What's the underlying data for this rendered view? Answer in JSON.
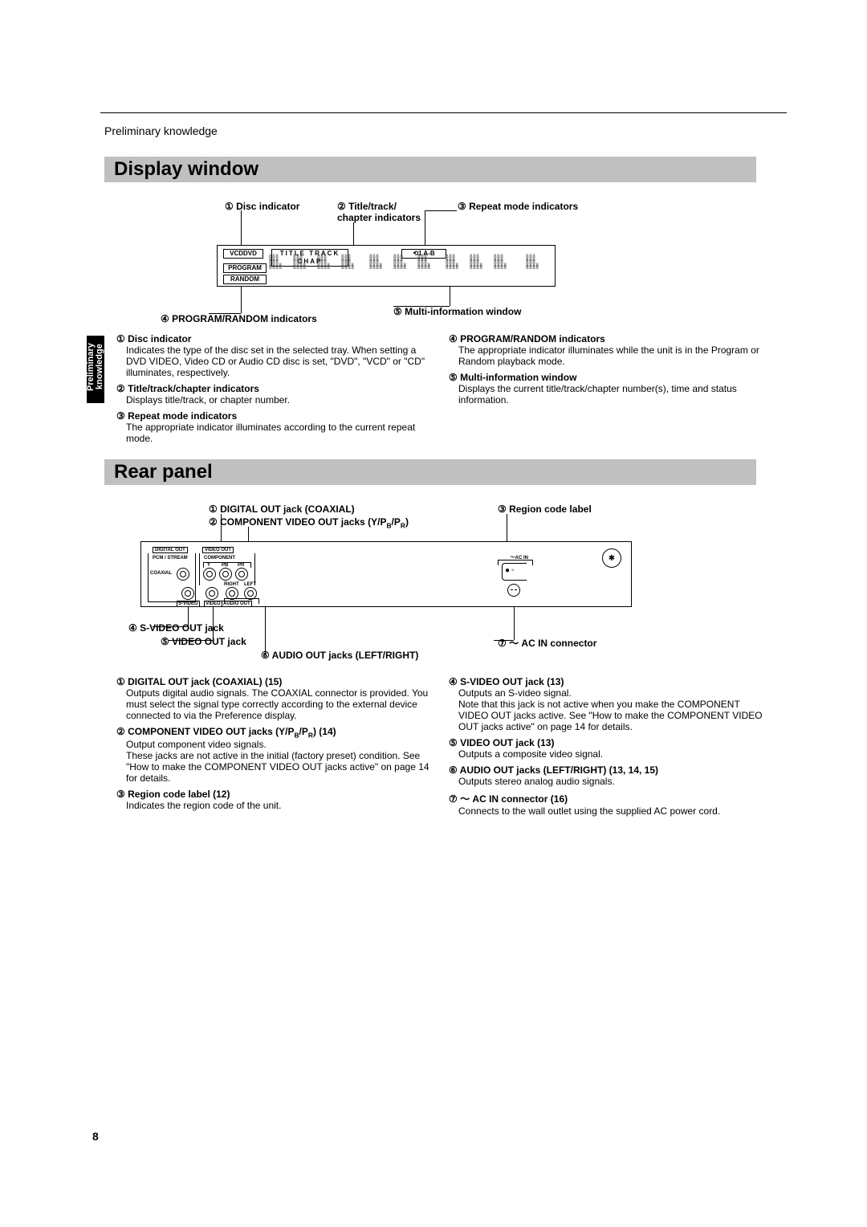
{
  "header": {
    "section": "Preliminary knowledge",
    "sidebar": "Preliminary\nknowledge"
  },
  "page_number": "8",
  "display_window": {
    "title": "Display window",
    "callouts": {
      "c1": "① Disc indicator",
      "c2": "② Title/track/\nchapter indicators",
      "c3": "③ Repeat mode indicators",
      "c4": "④ PROGRAM/RANDOM indicators",
      "c5": "⑤ Multi-information window"
    },
    "labels": {
      "vcd_dvd": "VCDDVD",
      "title": "TITLE",
      "track": "TRACK",
      "chap": "CHAP",
      "repeat": "⟲1    A-B",
      "program": "PROGRAM",
      "random": "RANDOM"
    },
    "descriptions_left": [
      {
        "t": "① Disc indicator",
        "b": "Indicates the type of the disc set in the selected tray. When setting a DVD VIDEO, Video CD or Audio CD disc is set, \"DVD\", \"VCD\" or \"CD\" illuminates, respectively."
      },
      {
        "t": "② Title/track/chapter indicators",
        "b": "Displays title/track, or chapter number."
      },
      {
        "t": "③ Repeat mode indicators",
        "b": "The appropriate indicator illuminates according to the current repeat mode."
      }
    ],
    "descriptions_right": [
      {
        "t": "④ PROGRAM/RANDOM indicators",
        "b": "The appropriate indicator illuminates while the unit is in the Program or Random playback mode."
      },
      {
        "t": "⑤ Multi-information window",
        "b": "Displays the current title/track/chapter number(s), time and status information."
      }
    ]
  },
  "rear_panel": {
    "title": "Rear panel",
    "callouts": {
      "c1": "① DIGITAL OUT jack (COAXIAL)",
      "c2_html": "② COMPONENT VIDEO OUT jacks (Y/P<sub>B</sub>/P<sub>R</sub>)",
      "c3": "③ Region code label",
      "c4": "④ S-VIDEO OUT jack",
      "c5": "⑤ VIDEO OUT jack",
      "c6": "⑥ AUDIO OUT jacks (LEFT/RIGHT)",
      "c7": "⑦ 〜 AC IN connector"
    },
    "jack_labels": {
      "digital_out": "DIGITAL OUT",
      "pcm_stream": "PCM / STREAM",
      "coaxial": "COAXIAL",
      "video_out": "VIDEO OUT",
      "component": "COMPONENT",
      "y": "Y",
      "pb": "PB",
      "pr": "PR",
      "svideo": "S-VIDEO",
      "video": "VIDEO",
      "right": "RIGHT",
      "left": "LEFT",
      "audio_out": "AUDIO OUT",
      "ac_in": "〜AC IN"
    },
    "descriptions_left": [
      {
        "t": "① DIGITAL OUT jack (COAXIAL) (15)",
        "b": "Outputs digital audio signals. The COAXIAL connector is provided. You must select the signal type correctly according to the external device connected to via the Preference display."
      },
      {
        "t_html": "② COMPONENT VIDEO OUT jacks (Y/P<sub>B</sub>/P<sub>R</sub>) (14)",
        "b": "Output component video signals.\nThese jacks are not active in the initial (factory preset) condition. See \"How to make the COMPONENT VIDEO OUT jacks active\" on page 14 for details."
      },
      {
        "t": "③ Region code label (12)",
        "b": "Indicates the region code of the unit."
      }
    ],
    "descriptions_right": [
      {
        "t": "④ S-VIDEO OUT jack (13)",
        "b": "Outputs an S-video signal.\nNote that this jack is not active when you make the COMPONENT VIDEO OUT jacks active. See \"How to make the COMPONENT VIDEO OUT jacks active\" on page 14 for details."
      },
      {
        "t": "⑤ VIDEO OUT jack (13)",
        "b": "Outputs a composite video signal."
      },
      {
        "t": "⑥ AUDIO OUT jacks (LEFT/RIGHT) (13, 14, 15)",
        "b": "Outputs stereo analog audio signals."
      },
      {
        "t": "⑦ 〜 AC IN connector (16)",
        "b": "Connects to the wall outlet using the supplied AC power cord."
      }
    ]
  }
}
